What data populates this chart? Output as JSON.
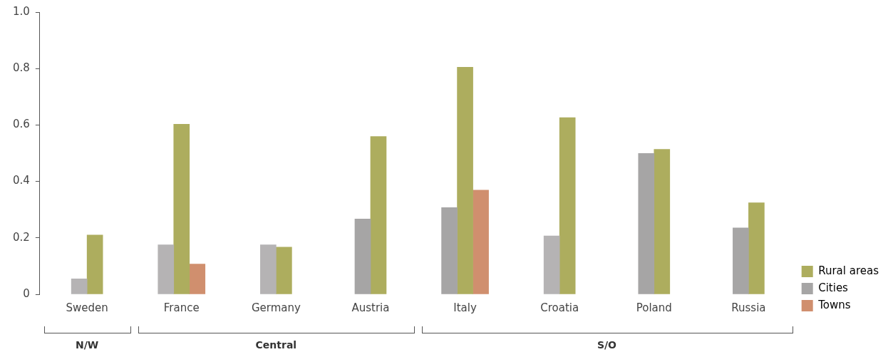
{
  "chart_data": {
    "type": "bar",
    "categories": [
      "Sweden",
      "France",
      "Germany",
      "Austria",
      "Italy",
      "Croatia",
      "Poland",
      "Russia"
    ],
    "series": [
      {
        "name": "Cities",
        "color": "#a6a5a5",
        "colors": [
          "#b5b3b4",
          "#b5b3b4",
          "#b5b3b4",
          "#a6a5a5",
          "#a6a5a5",
          "#b5b3b4",
          "#a6a5a5",
          "#a6a5a5"
        ],
        "values": [
          0.055,
          0.175,
          0.175,
          0.267,
          0.307,
          0.207,
          0.499,
          0.235
        ]
      },
      {
        "name": "Rural areas",
        "color": "#adad5e",
        "values": [
          0.21,
          0.603,
          0.167,
          0.559,
          0.805,
          0.626,
          0.514,
          0.324
        ]
      },
      {
        "name": "Towns",
        "color": "#d08f6e",
        "values": [
          null,
          0.107,
          null,
          null,
          0.369,
          null,
          null,
          null
        ]
      }
    ],
    "ylim": [
      0,
      1.0
    ],
    "yticks": [
      0,
      {
        "value": 0.2,
        "label": "0.2"
      },
      {
        "value": 0.4,
        "label": "0.4"
      },
      {
        "value": 0.6,
        "label": "0.6"
      },
      {
        "value": 0.8,
        "label": "0.8"
      },
      {
        "value": 1.0,
        "label": "1.0"
      }
    ],
    "grid": false,
    "legend": "bottom right",
    "annotations": [
      "N/W",
      "Central",
      "S/O"
    ]
  }
}
